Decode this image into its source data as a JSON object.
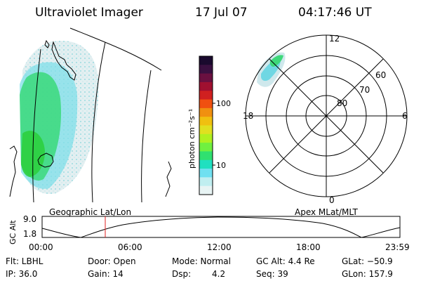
{
  "header": {
    "title": "Ultraviolet Imager",
    "date": "17 Jul 07",
    "time": "04:17:46 UT"
  },
  "left_panel": {
    "label": "Geographic Lat/Lon"
  },
  "right_panel": {
    "label": "Apex MLat/MLT",
    "mlt_labels": [
      "12",
      "18",
      "6",
      "0"
    ],
    "lat_labels": [
      "60",
      "70",
      "80"
    ]
  },
  "colorbar": {
    "unit_label": "photon cm⁻²s⁻¹",
    "tick_labels": [
      "100",
      "10"
    ],
    "colors": [
      "#1a0a2e",
      "#3a1040",
      "#6a1040",
      "#a01030",
      "#d02020",
      "#f05010",
      "#f09010",
      "#f0c010",
      "#e0e020",
      "#b0f020",
      "#70f040",
      "#30e070",
      "#20e0c0",
      "#70e0f0",
      "#c0eef0",
      "#e8f4f4"
    ]
  },
  "altitude_plot": {
    "ylabel": "GC Alt",
    "y_ticks": [
      "9.0",
      "1.8"
    ],
    "x_ticks": [
      "00:00",
      "06:00",
      "12:00",
      "18:00",
      "23:59"
    ]
  },
  "footer": {
    "flt": "Flt: LBHL",
    "door": "Door: Open",
    "mode": "Mode: Normal",
    "gc_alt": "GC Alt: 4.4 Re",
    "glat": "GLat: −50.9",
    "ip": "IP: 36.0",
    "gain": "Gain: 14",
    "dsp_label": "Dsp:",
    "dsp_value": "4.2",
    "seq": "Seq: 39",
    "glon": "GLon: 157.9"
  }
}
